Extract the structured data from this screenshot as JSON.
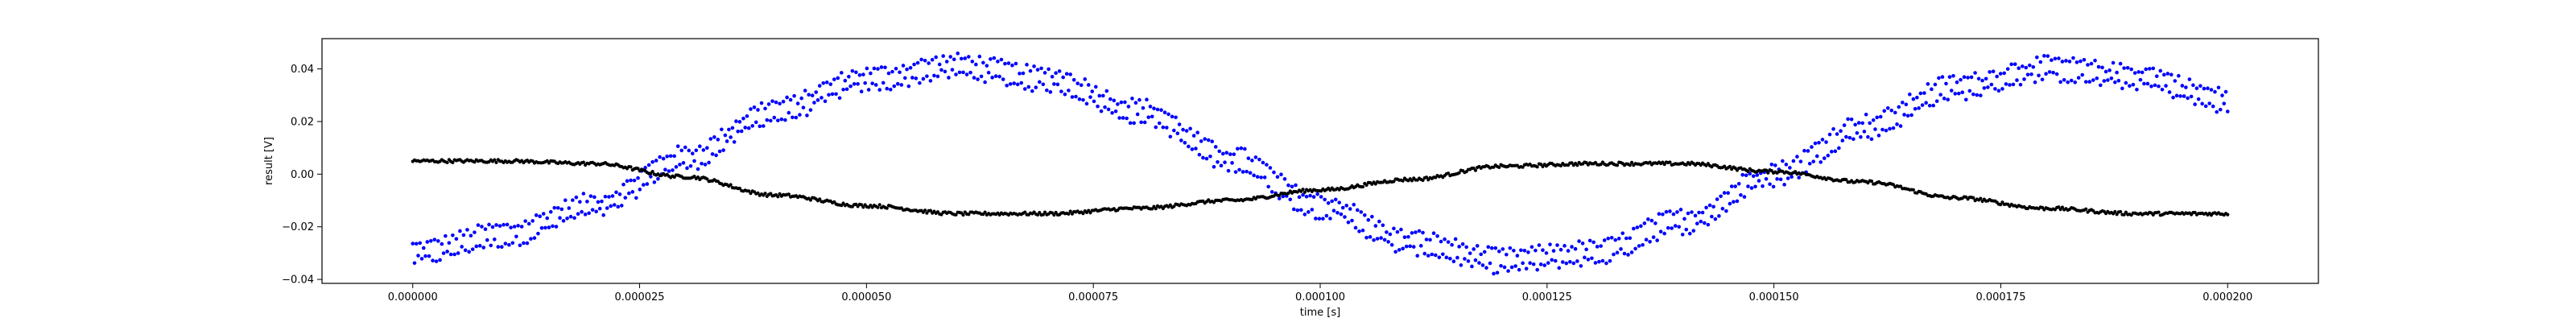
{
  "chart_data": {
    "type": "scatter",
    "title": "",
    "xlabel": "time [s]",
    "ylabel": "result [V]",
    "xlim": [
      -1e-05,
      0.00021
    ],
    "ylim": [
      -0.0415,
      0.0515
    ],
    "x_ticks": [
      0.0,
      2.5e-05,
      5e-05,
      7.5e-05,
      0.0001,
      0.000125,
      0.00015,
      0.000175,
      0.0002
    ],
    "x_tick_labels": [
      "0.000000",
      "0.000025",
      "0.000050",
      "0.000075",
      "0.000100",
      "0.000125",
      "0.000150",
      "0.000175",
      "0.000200"
    ],
    "y_ticks": [
      -0.04,
      -0.02,
      0.0,
      0.02,
      0.04
    ],
    "y_tick_labels": [
      "−0.04",
      "−0.02",
      "0.00",
      "0.02",
      "0.04"
    ],
    "grid": false,
    "legend": "none",
    "series": [
      {
        "color": "#0000ff",
        "marker": "dot",
        "description_values": {
          "x_start": 0.0,
          "x_end": 0.0002,
          "n_points": 1000,
          "points": [
            [
              0.0,
              -0.03
            ],
            [
              1e-05,
              -0.023
            ],
            [
              2e-05,
              -0.012
            ],
            [
              3e-05,
              0.006
            ],
            [
              4e-05,
              0.024
            ],
            [
              5e-05,
              0.036
            ],
            [
              6e-05,
              0.041
            ],
            [
              7e-05,
              0.036
            ],
            [
              8e-05,
              0.024
            ],
            [
              9e-05,
              0.006
            ],
            [
              0.0001,
              -0.012
            ],
            [
              0.00011,
              -0.026
            ],
            [
              0.00012,
              -0.033
            ],
            [
              0.00013,
              -0.03
            ],
            [
              0.00014,
              -0.018
            ],
            [
              0.00015,
              0.0
            ],
            [
              0.00016,
              0.018
            ],
            [
              0.00017,
              0.033
            ],
            [
              0.00018,
              0.04
            ],
            [
              0.00019,
              0.037
            ],
            [
              0.0002,
              0.028
            ]
          ]
        }
      },
      {
        "color": "#000000",
        "marker": "dot",
        "description_values": {
          "x_start": 0.0,
          "x_end": 0.0002,
          "n_points": 1000,
          "points": [
            [
              0.0,
              0.005
            ],
            [
              1e-05,
              0.005
            ],
            [
              2e-05,
              0.004
            ],
            [
              3e-05,
              -0.001
            ],
            [
              4e-05,
              -0.008
            ],
            [
              5e-05,
              -0.012
            ],
            [
              6e-05,
              -0.015
            ],
            [
              7e-05,
              -0.015
            ],
            [
              8e-05,
              -0.013
            ],
            [
              9e-05,
              -0.01
            ],
            [
              0.0001,
              -0.006
            ],
            [
              0.00011,
              -0.002
            ],
            [
              0.00012,
              0.003
            ],
            [
              0.00013,
              0.004
            ],
            [
              0.00014,
              0.004
            ],
            [
              0.00015,
              0.001
            ],
            [
              0.00016,
              -0.003
            ],
            [
              0.00017,
              -0.009
            ],
            [
              0.00018,
              -0.013
            ],
            [
              0.00019,
              -0.015
            ],
            [
              0.0002,
              -0.015
            ]
          ]
        }
      }
    ]
  }
}
